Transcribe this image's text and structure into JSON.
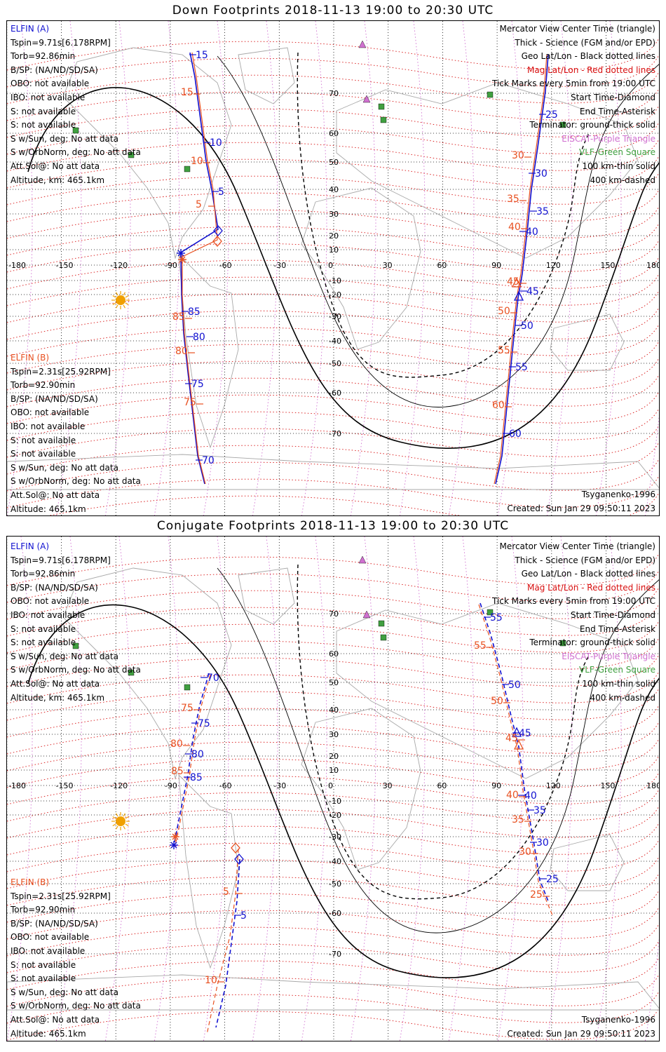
{
  "panels": [
    {
      "title": "Down Footprints 2018-11-13 19:00 to 20:30 UTC",
      "elfin_a": {
        "name": "ELFIN (A)",
        "lines": [
          "Tspin=9.71s[6.178RPM]",
          "Torb=92.86min",
          "B/SP: (NA/ND/SD/SA)",
          "OBO: not available",
          "IBO: not available",
          "S: not available",
          "S: not available",
          "S w/Sun, deg: No att data",
          "S w/OrbNorm, deg: No att data",
          "Att.Sol@: No att data",
          "Altitude, km: 465.1km"
        ]
      },
      "elfin_b": {
        "name": "ELFIN (B)",
        "lines": [
          "Tspin=2.31s[25.92RPM]",
          "Torb=92.90min",
          "B/SP: (NA/ND/SD/SA)",
          "OBO: not available",
          "IBO: not available",
          "S: not available",
          "S: not available",
          "S w/Sun, deg: No att data",
          "S w/OrbNorm, deg: No att data",
          "Att.Sol@: No att data",
          "Altitude: 465.1km"
        ]
      },
      "model": "Tsyganenko-1996",
      "created": "Created: Sun Jan 29 09:50:11 2023",
      "blue_ticks": [
        "15",
        "10",
        "5",
        "85",
        "80",
        "75",
        "70",
        "25",
        "30",
        "35",
        "40",
        "45",
        "50",
        "55",
        "60"
      ],
      "orange_ticks": [
        "15",
        "10",
        "5",
        "85",
        "80",
        "75",
        "30",
        "35",
        "40",
        "45",
        "50",
        "55",
        "60"
      ],
      "lat_labels": [
        "70",
        "60",
        "50",
        "40",
        "30",
        "20",
        "10",
        "-10",
        "-20",
        "-30",
        "-40",
        "-50",
        "-60",
        "-70"
      ]
    },
    {
      "title": "Conjugate Footprints 2018-11-13 19:00 to 20:30 UTC",
      "elfin_a": {
        "name": "ELFIN (A)",
        "lines": [
          "Tspin=9.71s[6.178RPM]",
          "Torb=92.86min",
          "B/SP: (NA/ND/SD/SA)",
          "OBO: not available",
          "IBO: not available",
          "S: not available",
          "S: not available",
          "S w/Sun, deg: No att data",
          "S w/OrbNorm, deg: No att data",
          "Att.Sol@: No att data",
          "Altitude, km: 465.1km"
        ]
      },
      "elfin_b": {
        "name": "ELFIN (B)",
        "lines": [
          "Tspin=2.31s[25.92RPM]",
          "Torb=92.90min",
          "B/SP: (NA/ND/SD/SA)",
          "OBO: not available",
          "IBO: not available",
          "S: not available",
          "S: not available",
          "S w/Sun, deg: No att data",
          "S w/OrbNorm, deg: No att data",
          "Att.Sol@: No att data",
          "Altitude: 465.1km"
        ]
      },
      "model": "Tsyganenko-1996",
      "created": "Created: Sun Jan 29 09:50:11 2023",
      "blue_ticks": [
        "70",
        "75",
        "80",
        "85",
        "55",
        "50",
        "45",
        "40",
        "35",
        "30",
        "25",
        "5"
      ],
      "orange_ticks": [
        "75",
        "80",
        "85",
        "55",
        "50",
        "45",
        "40",
        "35",
        "30",
        "25",
        "5",
        "10"
      ],
      "lat_labels": [
        "70",
        "60",
        "50",
        "40",
        "30",
        "20",
        "10",
        "-10",
        "-20",
        "-30",
        "-40",
        "-50",
        "-60",
        "-70"
      ]
    }
  ],
  "legend": {
    "lines": [
      {
        "text": "Mercator View Center Time (triangle)",
        "color": "#000000"
      },
      {
        "text": "Thick - Science (FGM and/or EPD)",
        "color": "#000000"
      },
      {
        "text": "Geo Lat/Lon - Black dotted lines",
        "color": "#000000"
      },
      {
        "text": "Mag Lat/Lon - Red dotted lines",
        "color": "#d81010"
      },
      {
        "text": "Tick Marks every 5min from 19:00 UTC",
        "color": "#000000"
      },
      {
        "text": "Start Time-Diamond",
        "color": "#000000"
      },
      {
        "text": "End Time-Asterisk",
        "color": "#000000"
      },
      {
        "text": "Terminator: ground-thick solid",
        "color": "#000000"
      },
      {
        "text": "EISCAT-Purple Triangle",
        "color": "#d070d0"
      },
      {
        "text": "VLF-Green Square",
        "color": "#40a040"
      },
      {
        "text": "100 km-thin solid",
        "color": "#000000"
      },
      {
        "text": "400 km-dashed",
        "color": "#000000"
      }
    ]
  },
  "lon_labels": [
    "-180",
    "-150",
    "-120",
    "-90",
    "-60",
    "-30",
    "0",
    "30",
    "60",
    "90",
    "120",
    "150",
    "180"
  ],
  "colors": {
    "elfin_a": "#1010d0",
    "elfin_b": "#e85020",
    "mag_grid": "#d81010",
    "geo_grid": "#000000",
    "eiscat": "#d070d0",
    "vlf": "#40a040",
    "sun": "#f0a000"
  }
}
